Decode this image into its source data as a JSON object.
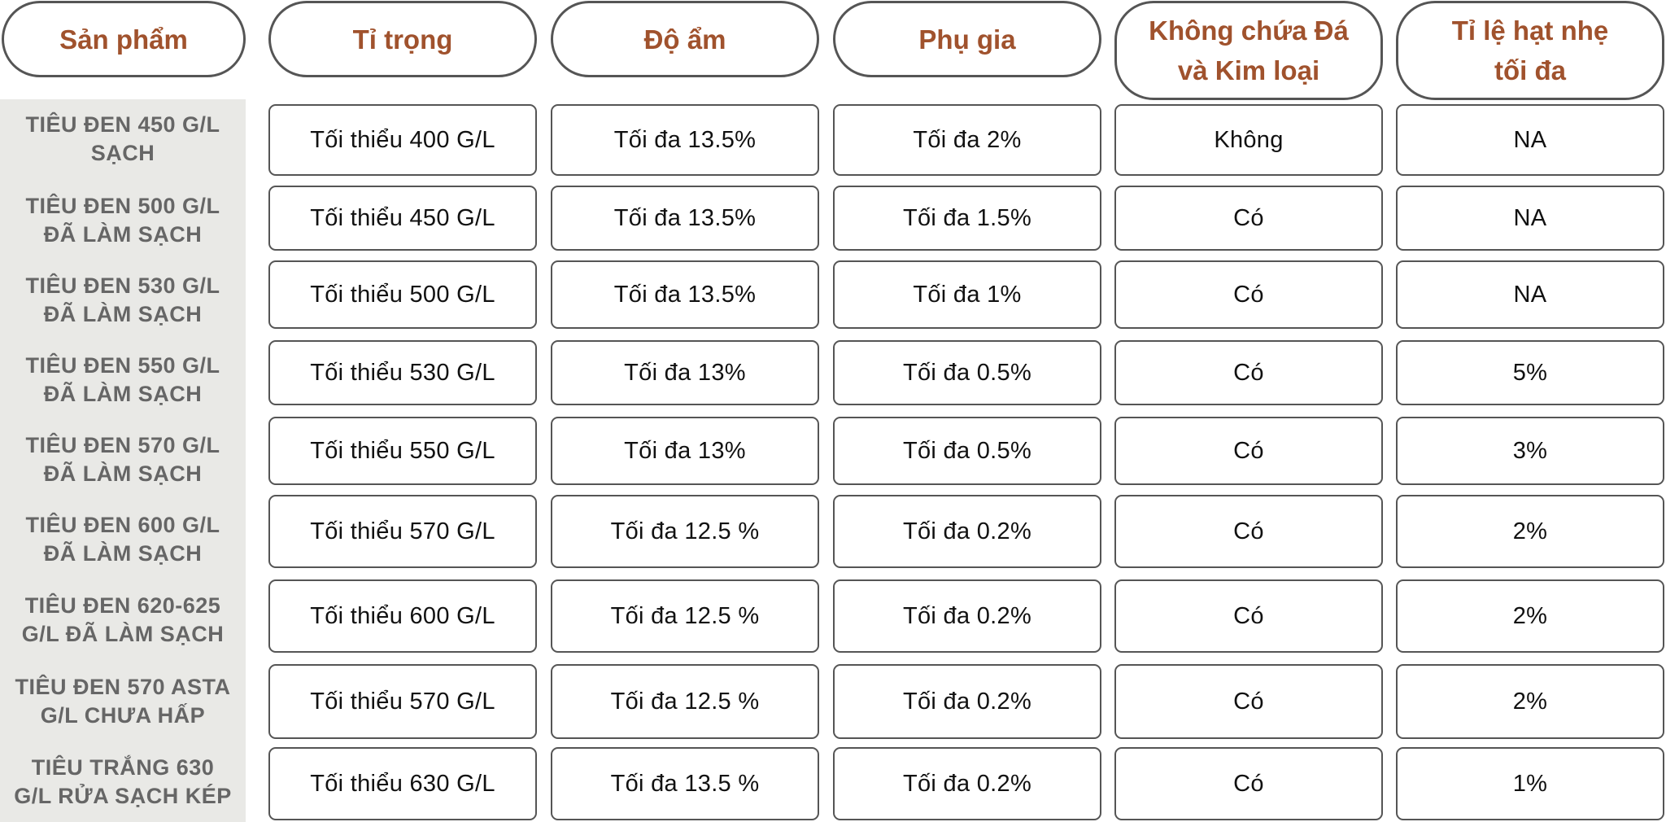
{
  "headers": [
    "Sản phẩm",
    "Tỉ trọng",
    "Độ ẩm",
    "Phụ gia",
    "Không chứa Đá\nvà Kim loại",
    "Tỉ lệ hạt nhẹ\ntối đa"
  ],
  "rows": [
    {
      "product": "TIÊU ĐEN 450 G/L\nSẠCH",
      "density": "Tối thiểu 400 G/L",
      "moisture": "Tối đa 13.5%",
      "additive": "Tối đa 2%",
      "stone_metal_free": "Không",
      "light_grain": "NA"
    },
    {
      "product": "TIÊU ĐEN 500 G/L\nĐÃ LÀM SẠCH",
      "density": "Tối thiểu 450 G/L",
      "moisture": "Tối đa 13.5%",
      "additive": "Tối đa 1.5%",
      "stone_metal_free": "Có",
      "light_grain": "NA"
    },
    {
      "product": "TIÊU ĐEN 530 G/L\nĐÃ LÀM SẠCH",
      "density": "Tối thiểu 500 G/L",
      "moisture": "Tối đa 13.5%",
      "additive": "Tối đa 1%",
      "stone_metal_free": "Có",
      "light_grain": "NA"
    },
    {
      "product": "TIÊU ĐEN 550 G/L\nĐÃ LÀM SẠCH",
      "density": "Tối thiểu 530 G/L",
      "moisture": "Tối đa 13%",
      "additive": "Tối đa 0.5%",
      "stone_metal_free": "Có",
      "light_grain": "5%"
    },
    {
      "product": "TIÊU ĐEN 570 G/L\nĐÃ LÀM SẠCH",
      "density": "Tối thiểu 550 G/L",
      "moisture": "Tối đa 13%",
      "additive": "Tối đa 0.5%",
      "stone_metal_free": "Có",
      "light_grain": "3%"
    },
    {
      "product": "TIÊU ĐEN 600 G/L\nĐÃ LÀM SẠCH",
      "density": "Tối thiểu 570 G/L",
      "moisture": "Tối đa 12.5 %",
      "additive": "Tối đa 0.2%",
      "stone_metal_free": "Có",
      "light_grain": "2%"
    },
    {
      "product": "TIÊU ĐEN 620-625\nG/L ĐÃ LÀM SẠCH",
      "density": "Tối thiểu 600 G/L",
      "moisture": "Tối đa 12.5 %",
      "additive": "Tối đa 0.2%",
      "stone_metal_free": "Có",
      "light_grain": "2%"
    },
    {
      "product": "TIÊU ĐEN 570 ASTA\nG/L CHƯA HẤP",
      "density": "Tối thiểu 570 G/L",
      "moisture": "Tối đa 12.5 %",
      "additive": "Tối đa 0.2%",
      "stone_metal_free": "Có",
      "light_grain": "2%"
    },
    {
      "product": "TIÊU TRẮNG 630\nG/L RỬA SẠCH KÉP",
      "density": "Tối thiểu 630 G/L",
      "moisture": "Tối đa 13.5 %",
      "additive": "Tối đa 0.2%",
      "stone_metal_free": "Có",
      "light_grain": "1%"
    }
  ],
  "colors": {
    "header_text": "#a0522d",
    "product_text": "#666666",
    "product_bg": "#e9e9e6",
    "border": "#555555",
    "cell_text": "#111111"
  }
}
